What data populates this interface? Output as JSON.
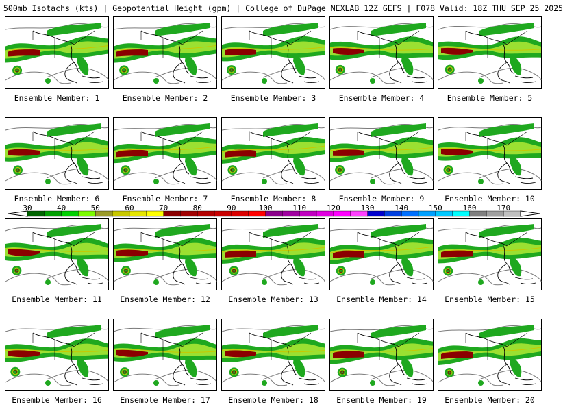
{
  "header": {
    "title": "500mb Isotachs (kts) | Geopotential Height (gpm) | College of DuPage NEXLAB   12Z GEFS | F078 Valid: 18Z THU SEP 25 2025"
  },
  "members": [
    {
      "label": "Ensemble Member: 1"
    },
    {
      "label": "Ensemble Member: 2"
    },
    {
      "label": "Ensemble Member: 3"
    },
    {
      "label": "Ensemble Member: 4"
    },
    {
      "label": "Ensemble Member: 5"
    },
    {
      "label": "Ensemble Member: 6"
    },
    {
      "label": "Ensemble Member: 7"
    },
    {
      "label": "Ensemble Member: 8"
    },
    {
      "label": "Ensemble Member: 9"
    },
    {
      "label": "Ensemble Member: 10"
    },
    {
      "label": "Ensemble Member: 11"
    },
    {
      "label": "Ensemble Member: 12"
    },
    {
      "label": "Ensemble Member: 13"
    },
    {
      "label": "Ensemble Member: 14"
    },
    {
      "label": "Ensemble Member: 15"
    },
    {
      "label": "Ensemble Member: 16"
    },
    {
      "label": "Ensemble Member: 17"
    },
    {
      "label": "Ensemble Member: 18"
    },
    {
      "label": "Ensemble Member: 19"
    },
    {
      "label": "Ensemble Member: 20"
    }
  ],
  "colorbar": {
    "labels": [
      "30",
      "40",
      "50",
      "60",
      "70",
      "80",
      "90",
      "100",
      "110",
      "120",
      "130",
      "140",
      "150",
      "160",
      "170"
    ],
    "colors": [
      "#006400",
      "#00a000",
      "#00d000",
      "#7cfc00",
      "#9b9b2a",
      "#c8c800",
      "#e6e600",
      "#ffff00",
      "#8b0000",
      "#a00000",
      "#b40000",
      "#c80000",
      "#dc0000",
      "#ff0000",
      "#8b008b",
      "#a000a0",
      "#c000c0",
      "#e000e0",
      "#ff00ff",
      "#ff40ff",
      "#0000cd",
      "#0040e0",
      "#0070ff",
      "#00a0ff",
      "#00c8ff",
      "#00ffff",
      "#808080",
      "#a0a0a0",
      "#c0c0c0"
    ]
  }
}
